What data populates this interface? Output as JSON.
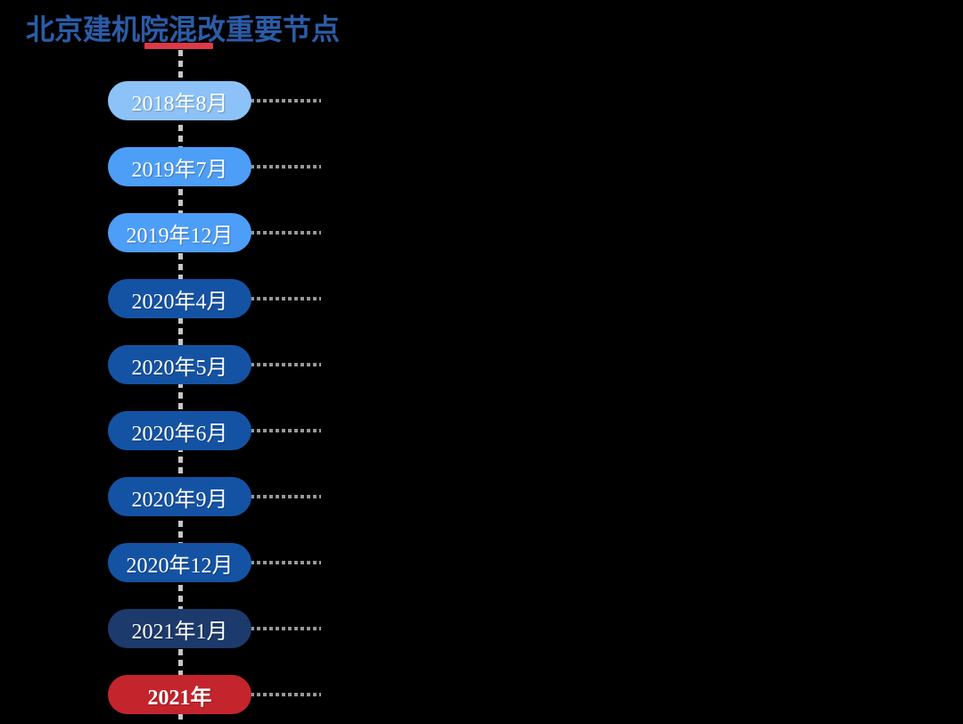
{
  "page": {
    "background_color": "#000000"
  },
  "title": {
    "text": "北京建机院混改重要节点",
    "color": "#2B5CA8",
    "underline_color": "#DC3A48"
  },
  "timeline": {
    "axis_color": "#C6C6C6",
    "connector_color": "#979797",
    "label_text_color": "#FFFFFF",
    "items": [
      {
        "label": "2018年8月",
        "color": "#8CC2F8",
        "bold": false
      },
      {
        "label": "2019年7月",
        "color": "#4D9EF7",
        "bold": false
      },
      {
        "label": "2019年12月",
        "color": "#4D9EF7",
        "bold": false
      },
      {
        "label": "2020年4月",
        "color": "#1453A4",
        "bold": false
      },
      {
        "label": "2020年5月",
        "color": "#1453A4",
        "bold": false
      },
      {
        "label": "2020年6月",
        "color": "#1453A4",
        "bold": false
      },
      {
        "label": "2020年9月",
        "color": "#1453A4",
        "bold": false
      },
      {
        "label": "2020年12月",
        "color": "#1453A4",
        "bold": false
      },
      {
        "label": "2021年1月",
        "color": "#1C3A6B",
        "bold": false
      },
      {
        "label": "2021年",
        "color": "#C4252C",
        "bold": true
      }
    ]
  }
}
